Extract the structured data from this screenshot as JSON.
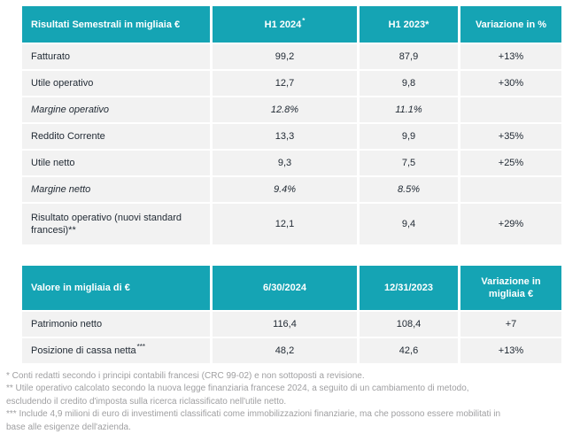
{
  "colors": {
    "accent_teal": "#15a4b4",
    "header_text": "#ffffff",
    "row_background": "#f2f2f2",
    "body_text": "#222b35",
    "footnote_text": "#9f9fa1"
  },
  "table1": {
    "header": [
      {
        "label": "Risultati Semestrali in migliaia €",
        "sup": ""
      },
      {
        "label": "H1 2024",
        "sup": "*"
      },
      {
        "label": "H1 2023*",
        "sup": ""
      },
      {
        "label": "Variazione in %",
        "sup": ""
      }
    ],
    "rows": [
      {
        "label": "Fatturato",
        "sup": "",
        "italic": false,
        "tall": false,
        "values": [
          "99,2",
          "87,9",
          "+13%"
        ]
      },
      {
        "label": "Utile operativo",
        "sup": "",
        "italic": false,
        "tall": false,
        "values": [
          "12,7",
          "9,8",
          "+30%"
        ]
      },
      {
        "label": "Margine operativo",
        "sup": "",
        "italic": true,
        "tall": false,
        "values": [
          "12.8%",
          "11.1%",
          ""
        ]
      },
      {
        "label": "Reddito Corrente",
        "sup": "",
        "italic": false,
        "tall": false,
        "values": [
          "13,3",
          "9,9",
          "+35%"
        ]
      },
      {
        "label": "Utile netto",
        "sup": "",
        "italic": false,
        "tall": false,
        "values": [
          "9,3",
          "7,5",
          "+25%"
        ]
      },
      {
        "label": "Margine netto",
        "sup": "",
        "italic": true,
        "tall": false,
        "values": [
          "9.4%",
          "8.5%",
          ""
        ]
      },
      {
        "label": "Risultato operativo (nuovi standard francesi)**",
        "sup": "",
        "italic": false,
        "tall": true,
        "values": [
          "12,1",
          "9,4",
          "+29%"
        ]
      }
    ]
  },
  "table2": {
    "header": [
      {
        "label": "Valore in migliaia di €",
        "sup": ""
      },
      {
        "label": "6/30/2024",
        "sup": ""
      },
      {
        "label": "12/31/2023",
        "sup": ""
      },
      {
        "label": "Variazione in migliaia €",
        "sup": ""
      }
    ],
    "rows": [
      {
        "label": "Patrimonio netto",
        "sup": "",
        "italic": false,
        "tall": false,
        "values": [
          "116,4",
          "108,4",
          "+7"
        ]
      },
      {
        "label": "Posizione di cassa netta",
        "sup": "***",
        "italic": false,
        "tall": false,
        "values": [
          "48,2",
          "42,6",
          "+13%"
        ]
      }
    ]
  },
  "footnotes": [
    "* Conti redatti secondo i principi contabili francesi (CRC 99-02) e non sottoposti a revisione.",
    "** Utile operativo calcolato secondo la nuova legge finanziaria francese 2024, a seguito di un cambiamento di metodo, escludendo il credito d'imposta sulla ricerca riclassificato nell'utile netto.",
    "*** Include 4,9 milioni di euro di investimenti classificati come immobilizzazioni finanziarie, ma che possono essere mobilitati in base alle esigenze dell'azienda."
  ]
}
